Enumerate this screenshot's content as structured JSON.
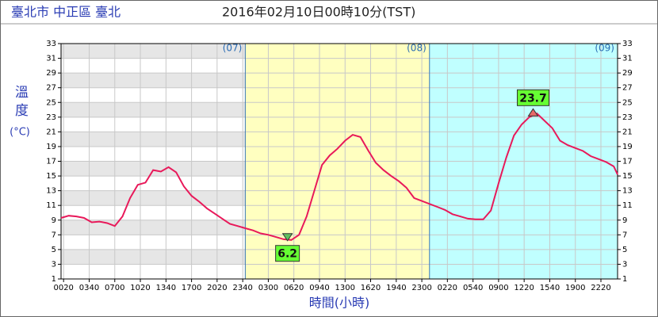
{
  "chart_data": {
    "type": "line",
    "title": "臺北市 中正區 臺北",
    "subtitle": "2016年02月10日00時10分(TST)",
    "y_label": "溫度",
    "y_unit": "(°C)",
    "x_label": "時間(小時)",
    "x": [
      0,
      1,
      2,
      3,
      4,
      5,
      6,
      7,
      8,
      9,
      10,
      11,
      12,
      13,
      14,
      15,
      16,
      17,
      18,
      19,
      20,
      21,
      22,
      23,
      24,
      25,
      26,
      27,
      28,
      29,
      30,
      31,
      32,
      33,
      34,
      35,
      36,
      37,
      38,
      39,
      40,
      41,
      42,
      43,
      44,
      45,
      46,
      47,
      48,
      49,
      50,
      51,
      52,
      53,
      54,
      55,
      56,
      57,
      58,
      59,
      60,
      61,
      62,
      63,
      64,
      65,
      66,
      67,
      68,
      69,
      70,
      71,
      72,
      72.5
    ],
    "series": [
      {
        "name": "溫度",
        "color": "#e8195a",
        "values": [
          9.3,
          9.6,
          9.5,
          9.3,
          8.7,
          8.8,
          8.6,
          8.2,
          9.5,
          12.0,
          13.8,
          14.1,
          15.8,
          15.6,
          16.2,
          15.5,
          13.6,
          12.3,
          11.5,
          10.6,
          9.9,
          9.2,
          8.5,
          8.2,
          7.9,
          7.6,
          7.2,
          7.0,
          6.7,
          6.4,
          6.3,
          7.0,
          9.5,
          13.0,
          16.5,
          17.8,
          18.7,
          19.8,
          20.6,
          20.3,
          18.5,
          16.8,
          15.8,
          15.0,
          14.3,
          13.4,
          12.0,
          11.6,
          11.2,
          10.8,
          10.4,
          9.8,
          9.5,
          9.2,
          9.1,
          9.1,
          10.3,
          14.0,
          17.5,
          20.5,
          22.0,
          23.0,
          23.5,
          22.5,
          21.5,
          19.8,
          19.2,
          18.8,
          18.4,
          17.7,
          17.3,
          16.9,
          16.3,
          15.2
        ]
      }
    ],
    "min": {
      "x": 29.5,
      "value": 6.2
    },
    "max": {
      "x": 61.5,
      "value": 23.7
    },
    "regions": [
      {
        "label": "(07)",
        "start": 0,
        "end": 24,
        "color": "#ffffff"
      },
      {
        "label": "(08)",
        "start": 24,
        "end": 48,
        "color": "#ffffc0"
      },
      {
        "label": "(09)",
        "start": 48,
        "end": 72.5,
        "color": "#c0ffff"
      }
    ],
    "xlim": [
      0,
      72.5
    ],
    "ylim": [
      1,
      33
    ],
    "yticks": [
      1,
      3,
      5,
      7,
      9,
      11,
      13,
      15,
      17,
      19,
      21,
      23,
      25,
      27,
      29,
      31,
      33
    ],
    "xticks": [
      {
        "value": 0.33,
        "label": "0020"
      },
      {
        "value": 3.67,
        "label": "0340"
      },
      {
        "value": 7,
        "label": "0700"
      },
      {
        "value": 10.33,
        "label": "1020"
      },
      {
        "value": 13.67,
        "label": "1340"
      },
      {
        "value": 17,
        "label": "1700"
      },
      {
        "value": 20.33,
        "label": "2020"
      },
      {
        "value": 23.67,
        "label": "2340"
      },
      {
        "value": 27,
        "label": "0300"
      },
      {
        "value": 30.33,
        "label": "0620"
      },
      {
        "value": 33.67,
        "label": "0940"
      },
      {
        "value": 37,
        "label": "1300"
      },
      {
        "value": 40.33,
        "label": "1620"
      },
      {
        "value": 43.67,
        "label": "1940"
      },
      {
        "value": 47,
        "label": "2300"
      },
      {
        "value": 50.33,
        "label": "0220"
      },
      {
        "value": 53.67,
        "label": "0540"
      },
      {
        "value": 57,
        "label": "0900"
      },
      {
        "value": 60.33,
        "label": "1220"
      },
      {
        "value": 63.67,
        "label": "1540"
      },
      {
        "value": 67,
        "label": "1900"
      },
      {
        "value": 70.33,
        "label": "2220"
      }
    ],
    "grid": true
  }
}
